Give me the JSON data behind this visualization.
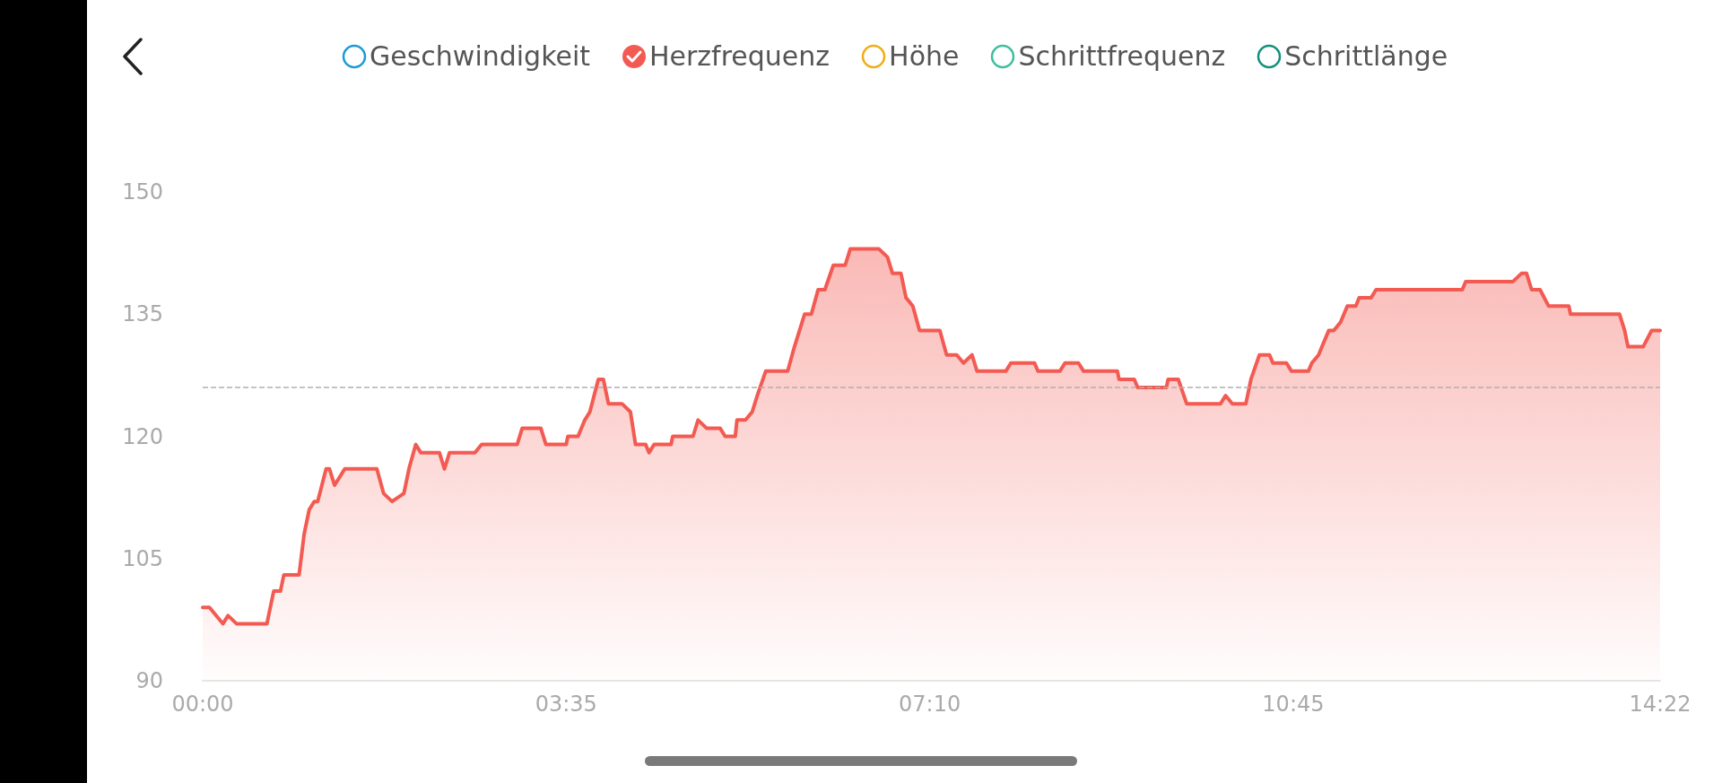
{
  "chart_data": {
    "type": "area",
    "legend": "top",
    "grid": false,
    "marker": "none",
    "line_style": "solid",
    "xlim": [
      0,
      862
    ],
    "ylim": [
      90,
      150
    ],
    "xticks": [
      {
        "value": 0,
        "label": "00:00"
      },
      {
        "value": 215,
        "label": "03:35"
      },
      {
        "value": 430,
        "label": "07:10"
      },
      {
        "value": 645,
        "label": "10:45"
      },
      {
        "value": 862,
        "label": "14:22"
      }
    ],
    "yticks": [
      90,
      105,
      120,
      135,
      150
    ],
    "ref_lines": [
      {
        "axis": "y",
        "value": 126,
        "label": null,
        "color": "#b0b0b0",
        "line_style": "dashed"
      }
    ],
    "series": [
      {
        "name": "Geschwindigkeit",
        "color": "#1a9bd7"
      },
      {
        "name": "Herzfrequenz",
        "color": "#f25a52",
        "x": [
          0,
          4,
          12,
          15,
          20,
          38,
          42,
          46,
          48,
          57,
          60,
          63,
          66,
          68,
          73,
          75,
          78,
          84,
          103,
          107,
          112,
          119,
          122,
          126,
          129,
          140,
          143,
          146,
          161,
          165,
          186,
          189,
          200,
          203,
          215,
          216,
          222,
          226,
          229,
          234,
          237,
          240,
          248,
          253,
          256,
          262,
          264,
          267,
          277,
          278,
          290,
          293,
          298,
          306,
          309,
          315,
          316,
          321,
          325,
          328,
          333,
          346,
          350,
          356,
          360,
          364,
          368,
          373,
          380,
          383,
          400,
          405,
          408,
          413,
          416,
          420,
          424,
          436,
          440,
          446,
          450,
          455,
          458,
          475,
          478,
          492,
          494,
          507,
          510,
          518,
          521,
          541,
          542,
          551,
          553,
          570,
          571,
          577,
          582,
          602,
          605,
          609,
          617,
          620,
          625,
          631,
          633,
          641,
          644,
          654,
          656,
          660,
          662,
          666,
          669,
          673,
          677,
          682,
          684,
          691,
          694,
          745,
          747,
          775,
          780,
          783,
          786,
          791,
          796,
          808,
          809,
          838,
          841,
          843,
          852,
          857,
          862
        ],
        "values": [
          99,
          99,
          97,
          98,
          97,
          97,
          101,
          101,
          103,
          103,
          108,
          111,
          112,
          112,
          116,
          116,
          114,
          116,
          116,
          113,
          112,
          113,
          116,
          119,
          118,
          118,
          116,
          118,
          118,
          119,
          119,
          121,
          121,
          119,
          119,
          120,
          120,
          122,
          123,
          127,
          127,
          124,
          124,
          123,
          119,
          119,
          118,
          119,
          119,
          120,
          120,
          122,
          121,
          121,
          120,
          120,
          122,
          122,
          123,
          125,
          128,
          128,
          131,
          135,
          135,
          138,
          138,
          141,
          141,
          143,
          143,
          142,
          140,
          140,
          137,
          136,
          133,
          133,
          130,
          130,
          129,
          130,
          128,
          128,
          129,
          129,
          128,
          128,
          129,
          129,
          128,
          128,
          127,
          127,
          126,
          126,
          127,
          127,
          124,
          124,
          125,
          124,
          124,
          127,
          130,
          130,
          129,
          129,
          128,
          128,
          129,
          130,
          131,
          133,
          133,
          134,
          136,
          136,
          137,
          137,
          138,
          138,
          139,
          139,
          140,
          140,
          138,
          138,
          136,
          136,
          135,
          135,
          133,
          131,
          131,
          133,
          133
        ]
      },
      {
        "name": "Höhe",
        "color": "#f0ad16"
      },
      {
        "name": "Schrittfrequenz",
        "color": "#3dbf9f"
      },
      {
        "name": "Schrittlänge",
        "color": "#12907a"
      }
    ]
  }
}
